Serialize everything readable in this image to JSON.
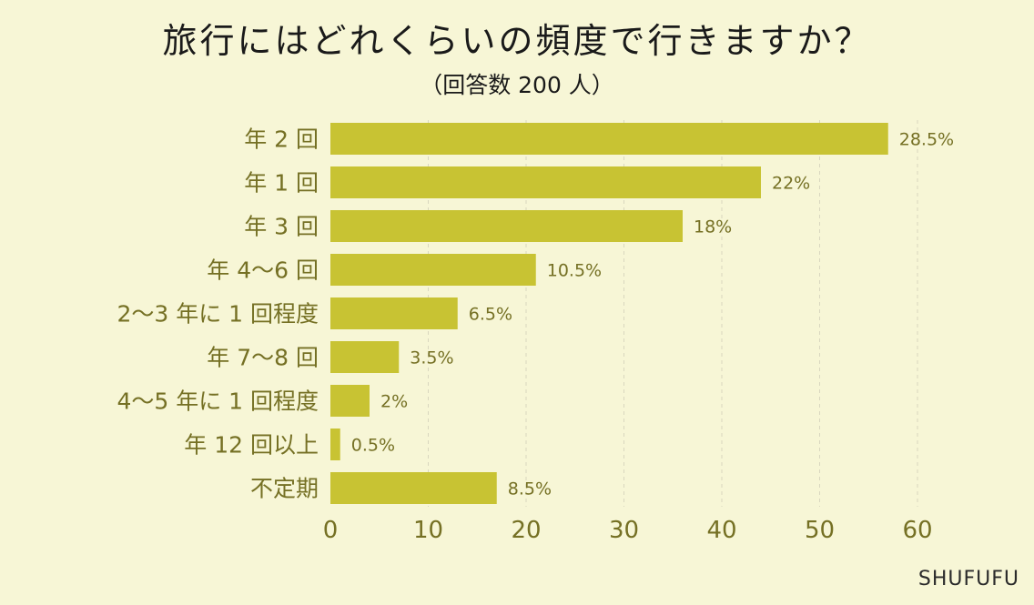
{
  "page": {
    "title": "旅行にはどれくらいの頻度で行きますか？",
    "subtitle": "（回答数 200 人）",
    "brand": "SHUFUFU"
  },
  "colors": {
    "background": "#f7f6d6",
    "bar": "#c8c333",
    "label": "#757024",
    "grid": "#d9d7bf"
  },
  "chart_data": {
    "type": "bar",
    "orientation": "horizontal",
    "title": "旅行にはどれくらいの頻度で行きますか？",
    "subtitle": "（回答数 200 人）",
    "categories": [
      "年 2 回",
      "年 1 回",
      "年 3 回",
      "年 4〜6 回",
      "2〜3 年に 1 回程度",
      "年 7〜8 回",
      "4〜5 年に 1 回程度",
      "年 12 回以上",
      "不定期"
    ],
    "values": [
      57,
      44,
      36,
      21,
      13,
      7,
      4,
      1,
      17
    ],
    "data_labels": [
      "28.5%",
      "22%",
      "18%",
      "10.5%",
      "6.5%",
      "3.5%",
      "2%",
      "0.5%",
      "8.5%"
    ],
    "xlim": [
      0,
      60
    ],
    "xticks": [
      0,
      10,
      20,
      30,
      40,
      50,
      60
    ],
    "grid": true,
    "grid_style": "dashed vertical"
  }
}
